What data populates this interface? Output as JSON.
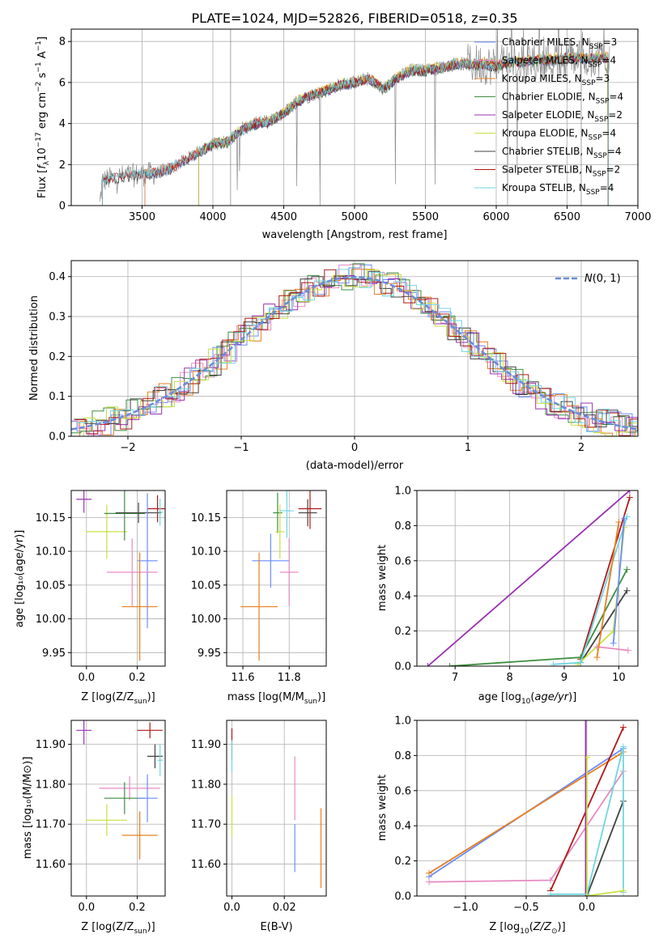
{
  "chart_data": [
    {
      "id": "spectrum",
      "type": "line",
      "title": "PLATE=1024, MJD=52826, FIBERID=0518, z=0.35",
      "xlabel": "wavelength [Angstrom, rest frame]",
      "ylabel": "Flux [f_λ10^-17 erg cm^-2 s^-1 A^-1]",
      "xlim": [
        3000,
        7000
      ],
      "ylim": [
        0,
        8.6
      ],
      "xticks": [
        3500,
        4000,
        4500,
        5000,
        5500,
        6000,
        6500,
        7000
      ],
      "yticks": [
        0,
        2,
        4,
        6,
        8
      ],
      "grid": true,
      "legend_placement": "top-right",
      "continuum_points": [
        [
          3200,
          0.0
        ],
        [
          3220,
          1.2
        ],
        [
          3300,
          1.35
        ],
        [
          3400,
          1.45
        ],
        [
          3500,
          1.5
        ],
        [
          3600,
          1.6
        ],
        [
          3700,
          1.8
        ],
        [
          3800,
          2.2
        ],
        [
          3900,
          2.6
        ],
        [
          4000,
          3.0
        ],
        [
          4100,
          3.1
        ],
        [
          4200,
          3.7
        ],
        [
          4300,
          4.0
        ],
        [
          4400,
          4.1
        ],
        [
          4500,
          4.5
        ],
        [
          4600,
          5.1
        ],
        [
          4700,
          5.4
        ],
        [
          4800,
          5.6
        ],
        [
          4900,
          5.9
        ],
        [
          5000,
          6.0
        ],
        [
          5100,
          6.2
        ],
        [
          5200,
          5.7
        ],
        [
          5300,
          6.2
        ],
        [
          5400,
          6.6
        ],
        [
          5500,
          6.6
        ],
        [
          5600,
          6.7
        ],
        [
          5700,
          6.9
        ],
        [
          5800,
          6.9
        ],
        [
          5900,
          6.9
        ],
        [
          6000,
          6.8
        ],
        [
          6100,
          7.0
        ],
        [
          6200,
          7.0
        ],
        [
          6300,
          7.1
        ],
        [
          6400,
          7.1
        ],
        [
          6500,
          7.2
        ],
        [
          6600,
          7.2
        ],
        [
          6700,
          7.2
        ],
        [
          6800,
          7.2
        ]
      ],
      "series": [
        {
          "name": "Chabrier MILES, N_SSP=3",
          "color": "#6a8cff",
          "range": [
            3520,
            6790
          ]
        },
        {
          "name": "Salpeter MILES, N_SSP=4",
          "color": "#e78ac3",
          "range": [
            3520,
            6790
          ]
        },
        {
          "name": "Kroupa MILES, N_SSP=3",
          "color": "#e87f20",
          "range": [
            3520,
            6790
          ]
        },
        {
          "name": "Chabrier ELODIE, N_SSP=4",
          "color": "#3d8e40",
          "range": [
            3900,
            6790
          ]
        },
        {
          "name": "Salpeter ELODIE, N_SSP=2",
          "color": "#9a30b0",
          "range": [
            3900,
            6790
          ]
        },
        {
          "name": "Kroupa ELODIE, N_SSP=4",
          "color": "#c9e040",
          "range": [
            3900,
            6790
          ]
        },
        {
          "name": "Chabrier STELIB, N_SSP=4",
          "color": "#404040",
          "range": [
            3220,
            6790
          ]
        },
        {
          "name": "Salpeter STELIB, N_SSP=2",
          "color": "#b01818",
          "range": [
            3220,
            6790
          ]
        },
        {
          "name": "Kroupa STELIB, N_SSP=4",
          "color": "#6fd6e0",
          "range": [
            3220,
            6790
          ]
        }
      ]
    },
    {
      "id": "residuals",
      "type": "line",
      "xlabel": "(data-model)/error",
      "ylabel": "Normed distribution",
      "xlim": [
        -2.5,
        2.5
      ],
      "ylim": [
        0,
        0.44
      ],
      "xticks": [
        -2,
        -1,
        0,
        1,
        2
      ],
      "yticks": [
        0.0,
        0.1,
        0.2,
        0.3,
        0.4
      ],
      "grid": true,
      "legend_placement": "top-right",
      "gaussian": {
        "name": "N(0,1)",
        "color": "#6a8cd8"
      },
      "hist_colors": [
        "#6a8cff",
        "#e78ac3",
        "#e87f20",
        "#3d8e40",
        "#9a30b0",
        "#c9e040",
        "#404040",
        "#b01818",
        "#6fd6e0"
      ]
    },
    {
      "id": "age_vs_Z",
      "type": "scatter",
      "xlabel": "Z [log10(Z/Z_sun)]",
      "ylabel": "age  [log10(age/yr)]",
      "xlim": [
        -0.06,
        0.31
      ],
      "ylim": [
        9.93,
        10.19
      ],
      "xticks": [
        0.0,
        0.2
      ],
      "yticks": [
        9.95,
        10.0,
        10.05,
        10.1,
        10.15
      ],
      "grid": true,
      "points": [
        {
          "x": -0.01,
          "y": 10.177,
          "xerr": 0.03,
          "yerr": 0.02,
          "color": "#9a30b0"
        },
        {
          "x": 0.08,
          "y": 10.129,
          "xerr": 0.08,
          "yerr": 0.04,
          "color": "#c9e040"
        },
        {
          "x": 0.15,
          "y": 10.156,
          "xerr": 0.08,
          "yerr": 0.04,
          "color": "#3d8e40"
        },
        {
          "x": 0.205,
          "y": 10.157,
          "xerr": 0.09,
          "yerr": 0.015,
          "color": "#404040"
        },
        {
          "x": 0.28,
          "y": 10.163,
          "xerr": 0.04,
          "yerr": 0.02,
          "color": "#b01818"
        },
        {
          "x": 0.29,
          "y": 10.158,
          "xerr": 0.01,
          "yerr": 0.02,
          "color": "#6fd6e0"
        },
        {
          "x": 0.24,
          "y": 10.086,
          "xerr": 0.04,
          "yerr": 0.1,
          "color": "#6a8cff"
        },
        {
          "x": 0.18,
          "y": 10.069,
          "xerr": 0.1,
          "yerr": 0.05,
          "color": "#e78ac3"
        },
        {
          "x": 0.21,
          "y": 10.018,
          "xerr": 0.07,
          "yerr": 0.08,
          "color": "#e87f20"
        }
      ]
    },
    {
      "id": "age_vs_mass",
      "type": "scatter",
      "xlabel": "mass [log10(M/M_sun)]",
      "ylabel": "",
      "xlim": [
        11.53,
        11.96
      ],
      "ylim": [
        9.93,
        10.19
      ],
      "xticks": [
        11.6,
        11.8
      ],
      "yticks": [
        9.95,
        10.0,
        10.05,
        10.1,
        10.15
      ],
      "grid": true,
      "points": [
        {
          "x": 11.75,
          "y": 10.157,
          "xerr": 0.02,
          "yerr": 0.03,
          "color": "#3d8e40"
        },
        {
          "x": 11.76,
          "y": 10.129,
          "xerr": 0.02,
          "yerr": 0.04,
          "color": "#c9e040"
        },
        {
          "x": 11.79,
          "y": 10.16,
          "xerr": 0.03,
          "yerr": 0.04,
          "color": "#6fd6e0"
        },
        {
          "x": 11.88,
          "y": 10.157,
          "xerr": 0.04,
          "yerr": 0.02,
          "color": "#404040"
        },
        {
          "x": 11.89,
          "y": 10.163,
          "xerr": 0.05,
          "yerr": 0.03,
          "color": "#b01818"
        },
        {
          "x": 11.72,
          "y": 10.086,
          "xerr": 0.08,
          "yerr": 0.04,
          "color": "#6a8cff"
        },
        {
          "x": 11.8,
          "y": 10.069,
          "xerr": 0.04,
          "yerr": 0.05,
          "color": "#e78ac3"
        },
        {
          "x": 11.67,
          "y": 10.018,
          "xerr": 0.08,
          "yerr": 0.08,
          "color": "#e87f20"
        }
      ]
    },
    {
      "id": "massweight_vs_age",
      "type": "line",
      "xlabel": "age  [log10(age/yr)]",
      "ylabel": "mass weight",
      "xlim": [
        6.3,
        10.35
      ],
      "ylim": [
        0,
        1
      ],
      "xticks": [
        7,
        8,
        9,
        10
      ],
      "yticks": [
        0.0,
        0.2,
        0.4,
        0.6,
        0.8,
        1.0
      ],
      "grid": true,
      "series": [
        {
          "color": "#9a30b0",
          "points": [
            [
              6.5,
              0.0
            ],
            [
              10.2,
              1.0
            ]
          ]
        },
        {
          "color": "#b01818",
          "points": [
            [
              9.3,
              0.04
            ],
            [
              10.2,
              0.96
            ]
          ]
        },
        {
          "color": "#3d8e40",
          "points": [
            [
              6.9,
              0.0
            ],
            [
              9.3,
              0.05
            ],
            [
              10.15,
              0.55
            ]
          ]
        },
        {
          "color": "#404040",
          "points": [
            [
              9.3,
              0.02
            ],
            [
              10.15,
              0.43
            ]
          ]
        },
        {
          "color": "#c9e040",
          "points": [
            [
              9.25,
              0.01
            ],
            [
              9.9,
              0.2
            ],
            [
              10.1,
              0.79
            ]
          ]
        },
        {
          "color": "#6fd6e0",
          "points": [
            [
              8.8,
              0.01
            ],
            [
              9.3,
              0.02
            ],
            [
              10.15,
              0.85
            ]
          ]
        },
        {
          "color": "#e78ac3",
          "points": [
            [
              9.6,
              0.11
            ],
            [
              10.17,
              0.09
            ]
          ]
        },
        {
          "color": "#e87f20",
          "points": [
            [
              9.6,
              0.05
            ],
            [
              10.0,
              0.82
            ]
          ]
        },
        {
          "color": "#6a8cff",
          "points": [
            [
              9.9,
              0.13
            ],
            [
              10.1,
              0.84
            ]
          ]
        }
      ]
    },
    {
      "id": "mass_vs_Z",
      "type": "scatter",
      "xlabel": "Z [log10(Z/Z_sun)]",
      "ylabel": "mass [log10(M/M_sun)]",
      "xlim": [
        -0.06,
        0.31
      ],
      "ylim": [
        11.52,
        11.96
      ],
      "xticks": [
        0.0,
        0.2
      ],
      "yticks": [
        11.6,
        11.7,
        11.8,
        11.9
      ],
      "grid": true,
      "points": [
        {
          "x": -0.01,
          "y": 11.935,
          "xerr": 0.03,
          "yerr": 0.035,
          "color": "#9a30b0"
        },
        {
          "x": 0.25,
          "y": 11.935,
          "xerr": 0.05,
          "yerr": 0.02,
          "color": "#b01818"
        },
        {
          "x": 0.27,
          "y": 11.87,
          "xerr": 0.03,
          "yerr": 0.03,
          "color": "#404040"
        },
        {
          "x": 0.29,
          "y": 11.86,
          "xerr": 0.01,
          "yerr": 0.04,
          "color": "#6fd6e0"
        },
        {
          "x": 0.17,
          "y": 11.79,
          "xerr": 0.12,
          "yerr": 0.03,
          "color": "#e78ac3"
        },
        {
          "x": 0.15,
          "y": 11.765,
          "xerr": 0.08,
          "yerr": 0.04,
          "color": "#3d8e40"
        },
        {
          "x": 0.24,
          "y": 11.765,
          "xerr": 0.04,
          "yerr": 0.06,
          "color": "#6a8cff"
        },
        {
          "x": 0.08,
          "y": 11.71,
          "xerr": 0.08,
          "yerr": 0.04,
          "color": "#c9e040"
        },
        {
          "x": 0.21,
          "y": 11.672,
          "xerr": 0.07,
          "yerr": 0.06,
          "color": "#e87f20"
        }
      ]
    },
    {
      "id": "mass_vs_ebv",
      "type": "scatter",
      "xlabel": "E(B-V)",
      "ylabel": "",
      "xlim": [
        -0.002,
        0.036
      ],
      "ylim": [
        11.52,
        11.96
      ],
      "xticks": [
        0.0,
        0.02
      ],
      "yticks": [
        11.6,
        11.7,
        11.8,
        11.9
      ],
      "grid": true,
      "points": [
        {
          "x": 0.0,
          "y": 11.9,
          "xerr": 0,
          "yerr": 0.04,
          "color": "#b01818"
        },
        {
          "x": 0.0,
          "y": 11.87,
          "xerr": 0,
          "yerr": 0.04,
          "color": "#6fd6e0"
        },
        {
          "x": 0.0,
          "y": 11.72,
          "xerr": 0,
          "yerr": 0.05,
          "color": "#c9e040"
        },
        {
          "x": 0.024,
          "y": 11.79,
          "xerr": 0,
          "yerr": 0.08,
          "color": "#e78ac3"
        },
        {
          "x": 0.024,
          "y": 11.64,
          "xerr": 0,
          "yerr": 0.06,
          "color": "#6a8cff"
        },
        {
          "x": 0.034,
          "y": 11.64,
          "xerr": 0,
          "yerr": 0.1,
          "color": "#e87f20"
        }
      ]
    },
    {
      "id": "massweight_vs_Z",
      "type": "line",
      "xlabel": "Z [log10(Z/Z_sun)]",
      "ylabel": "mass weight",
      "xlim": [
        -1.4,
        0.42
      ],
      "ylim": [
        0,
        1
      ],
      "xticks": [
        -1.0,
        -0.5,
        0.0
      ],
      "yticks": [
        0.0,
        0.2,
        0.4,
        0.6,
        0.8,
        1.0
      ],
      "grid": true,
      "series": [
        {
          "color": "#6a8cff",
          "points": [
            [
              -1.3,
              0.11
            ],
            [
              0.3,
              0.84
            ]
          ]
        },
        {
          "color": "#e87f20",
          "points": [
            [
              -1.3,
              0.13
            ],
            [
              0.3,
              0.82
            ]
          ]
        },
        {
          "color": "#e78ac3",
          "points": [
            [
              -1.3,
              0.08
            ],
            [
              -0.3,
              0.09
            ],
            [
              0.3,
              0.71
            ]
          ]
        },
        {
          "color": "#b01818",
          "points": [
            [
              -0.3,
              0.03
            ],
            [
              0.3,
              0.96
            ]
          ]
        },
        {
          "color": "#404040",
          "points": [
            [
              0.0,
              0.0
            ],
            [
              0.3,
              0.54
            ]
          ]
        },
        {
          "color": "#9a30b0",
          "points": [
            [
              -0.01,
              1.0
            ],
            [
              -0.01,
              0.0
            ]
          ]
        },
        {
          "color": "#6fd6e0",
          "points": [
            [
              -0.3,
              0.01
            ],
            [
              0.0,
              0.01
            ],
            [
              0.3,
              0.85
            ],
            [
              0.3,
              0.02
            ]
          ]
        },
        {
          "color": "#c9e040",
          "points": [
            [
              0.0,
              0.79
            ],
            [
              0.0,
              0.0
            ],
            [
              0.3,
              0.03
            ]
          ]
        }
      ]
    }
  ]
}
